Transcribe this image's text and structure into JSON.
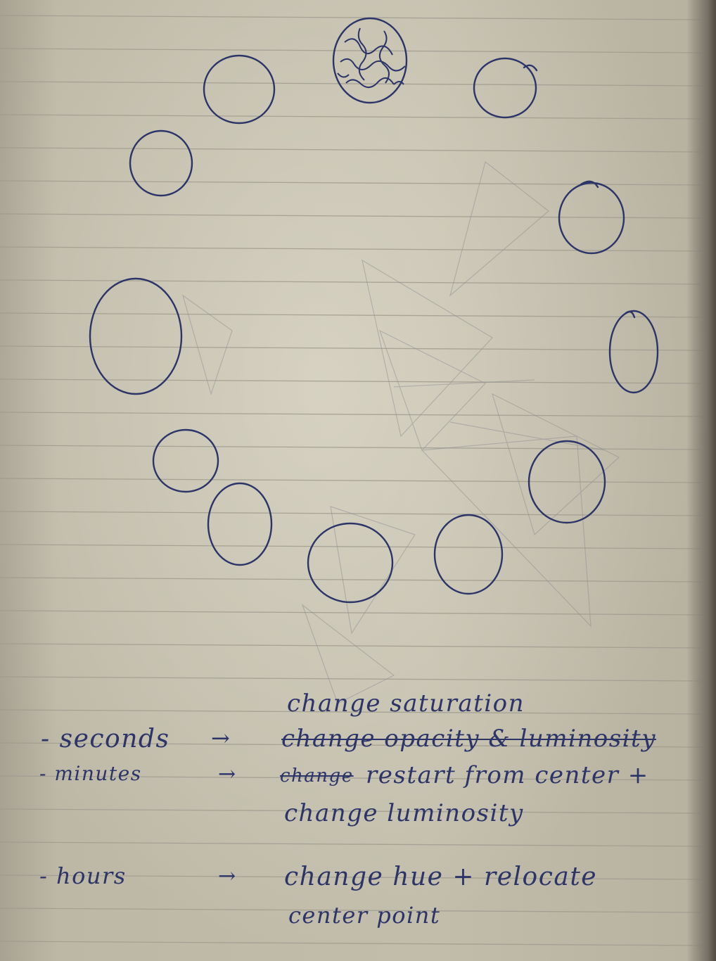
{
  "ink_color": "#2c3468",
  "pencil_color": "#8f9094",
  "line_color": "#9e9a8e",
  "drawing": {
    "subject": "ring of hand-drawn circles (clock concept)",
    "circle_count": 12,
    "scribbled_circle_icon": "scribble-circle-icon"
  },
  "notes": {
    "saturation": "change saturation",
    "seconds": {
      "label": "- seconds",
      "arrow": "→",
      "text": "change opacity & luminosity"
    },
    "minutes": {
      "label": "- minutes",
      "arrow": "→",
      "struck": "change",
      "text": "restart from center +",
      "text2": "change luminosity"
    },
    "hours": {
      "label": "- hours",
      "arrow": "→",
      "text": "change hue + relocate",
      "text2": "center point"
    }
  }
}
